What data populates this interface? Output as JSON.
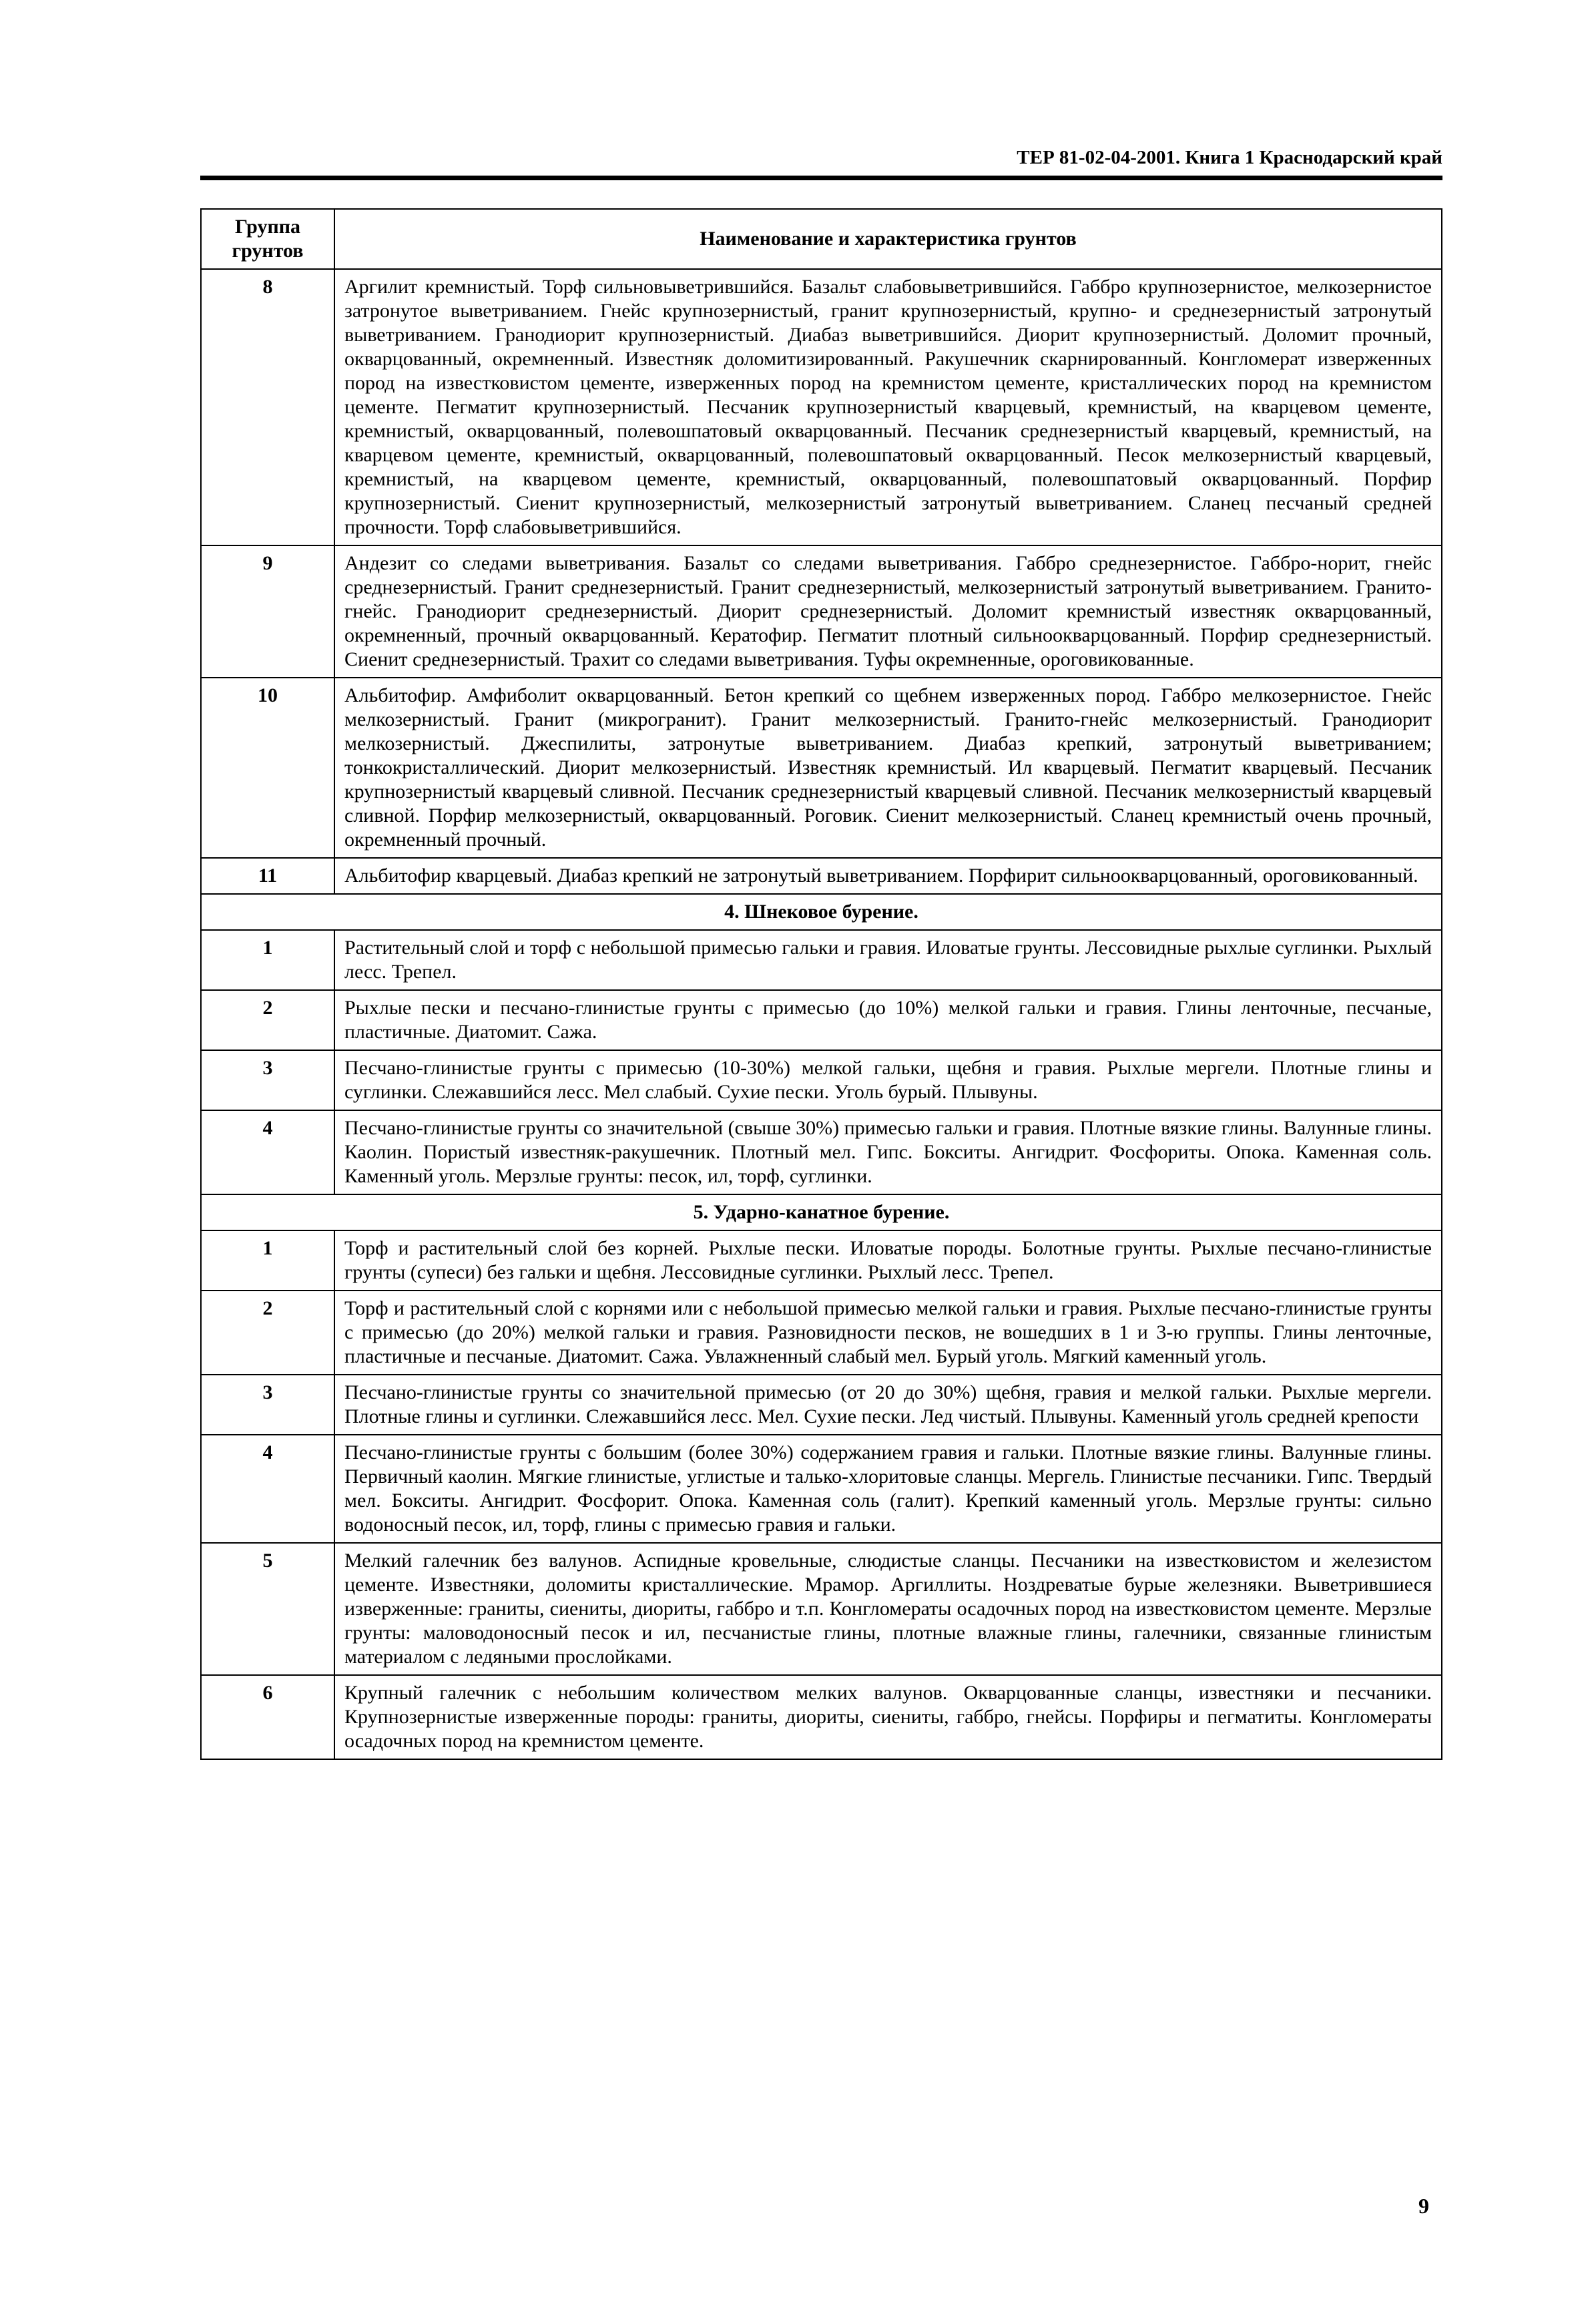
{
  "doc_header": "ТЕР 81-02-04-2001. Книга 1  Краснодарский край",
  "table": {
    "col1_header": "Группа грунтов",
    "col2_header": "Наименование и характеристика грунтов",
    "rows": [
      {
        "type": "data",
        "group": "8",
        "desc": "Аргилит кремнистый. Торф сильновыветрившийся. Базальт слабовыветрившийся. Габбро крупнозернистое, мелкозернистое затронутое выветриванием. Гнейс крупнозернистый, гранит крупнозернистый, крупно- и среднезернистый затронутый выветриванием. Гранодиорит крупнозернистый. Диабаз выветрившийся. Диорит крупнозернистый. Доломит прочный, окварцованный, окремненный. Известняк доломитизированный. Ракушечник скарнированный. Конгломерат изверженных пород на известковистом цементе, изверженных пород на кремнистом цементе, кристаллических пород на кремнистом цементе. Пегматит крупнозернистый. Песчаник крупнозернистый кварцевый, кремнистый, на кварцевом цементе, кремнистый, окварцованный, полевошпатовый окварцованный. Песчаник среднезернистый кварцевый, кремнистый, на кварцевом цементе, кремнистый, окварцованный, полевошпатовый окварцованный. Песок мелкозернистый кварцевый, кремнистый, на кварцевом цементе, кремнистый, окварцованный, полевошпатовый окварцованный. Порфир крупнозернистый. Сиенит крупнозернистый, мелкозернистый затронутый выветриванием. Сланец песчаный средней прочности. Торф слабовыветрившийся."
      },
      {
        "type": "data",
        "group": "9",
        "desc": "Андезит со следами выветривания. Базальт со следами выветривания. Габбро среднезернистое. Габбро-норит, гнейс среднезернистый. Гранит среднезернистый. Гранит среднезернистый, мелкозернистый затронутый выветриванием. Гранито-гнейс. Гранодиорит среднезернистый. Диорит среднезернистый. Доломит кремнистый известняк окварцованный, окремненный, прочный окварцованный. Кератофир. Пегматит плотный сильноокварцованный. Порфир среднезернистый. Сиенит среднезернистый. Трахит со следами выветривания. Туфы окремненные, ороговикованные."
      },
      {
        "type": "data",
        "group": "10",
        "desc": "Альбитофир. Амфиболит окварцованный. Бетон крепкий со щебнем изверженных пород. Габбро мелкозернистое. Гнейс мелкозернистый. Гранит (микрогранит). Гранит мелкозернистый. Гранито-гнейс мелкозернистый. Гранодиорит мелкозернистый. Джеспилиты, затронутые выветриванием. Диабаз крепкий, затронутый выветриванием; тонкокристаллический. Диорит мелкозернистый. Известняк кремнистый. Ил кварцевый. Пегматит кварцевый. Песчаник крупнозернистый кварцевый сливной. Песчаник среднезернистый кварцевый сливной. Песчаник мелкозернистый кварцевый сливной. Порфир мелкозернистый, окварцованный. Роговик. Сиенит мелкозернистый. Сланец кремнистый очень прочный, окремненный прочный."
      },
      {
        "type": "data",
        "group": "11",
        "desc": "Альбитофир кварцевый. Диабаз крепкий не затронутый выветриванием. Порфирит сильноокварцованный, ороговикованный."
      },
      {
        "type": "section",
        "title": "4. Шнековое бурение."
      },
      {
        "type": "data",
        "group": "1",
        "desc": "Растительный слой и торф с небольшой примесью гальки и гравия. Иловатые грунты. Лессовидные рыхлые суглинки. Рыхлый лесс. Трепел."
      },
      {
        "type": "data",
        "group": "2",
        "desc": "Рыхлые пески и песчано-глинистые грунты с примесью (до 10%) мелкой гальки и гравия. Глины ленточные, песчаные, пластичные. Диатомит. Сажа."
      },
      {
        "type": "data",
        "group": "3",
        "desc": "Песчано-глинистые грунты с примесью (10-30%) мелкой гальки, щебня и гравия. Рыхлые мергели. Плотные глины и суглинки. Слежавшийся лесс. Мел слабый. Сухие пески. Уголь бурый. Плывуны."
      },
      {
        "type": "data",
        "group": "4",
        "desc": "Песчано-глинистые грунты со значительной (свыше 30%) примесью гальки и гравия. Плотные вязкие глины. Валунные глины. Каолин. Пористый известняк-ракушечник. Плотный мел. Гипс. Бокситы. Ангидрит. Фосфориты. Опока. Каменная соль. Каменный уголь. Мерзлые грунты: песок, ил, торф, суглинки."
      },
      {
        "type": "section",
        "title": "5. Ударно-канатное бурение."
      },
      {
        "type": "data",
        "group": "1",
        "desc": "Торф и растительный слой без корней. Рыхлые пески. Иловатые породы. Болотные грунты. Рыхлые песчано-глинистые грунты (супеси) без гальки и щебня. Лессовидные суглинки. Рыхлый лесс. Трепел."
      },
      {
        "type": "data",
        "group": "2",
        "desc": "Торф и растительный слой с корнями или с небольшой примесью мелкой гальки и гравия. Рыхлые песчано-глинистые грунты с примесью (до 20%) мелкой гальки и гравия. Разновидности песков, не вошедших в 1 и 3-ю группы. Глины ленточные, пластичные и песчаные. Диатомит. Сажа. Увлажненный слабый мел. Бурый уголь. Мягкий каменный уголь."
      },
      {
        "type": "data",
        "group": "3",
        "desc": "Песчано-глинистые грунты со значительной примесью (от 20 до 30%) щебня, гравия и мелкой гальки. Рыхлые мергели. Плотные глины и суглинки. Слежавшийся лесс. Мел. Сухие пески. Лед чистый. Плывуны. Каменный уголь средней крепости"
      },
      {
        "type": "data",
        "group": "4",
        "desc": "Песчано-глинистые грунты с большим (более 30%) содержанием гравия и гальки. Плотные вязкие глины. Валунные глины. Первичный каолин. Мягкие глинистые, углистые и талько-хлоритовые сланцы. Мергель. Глинистые песчаники. Гипс. Твердый мел. Бокситы. Ангидрит. Фосфорит. Опока. Каменная соль (галит). Крепкий каменный уголь. Мерзлые грунты: сильно водоносный песок, ил, торф, глины с примесью гравия и гальки."
      },
      {
        "type": "data",
        "group": "5",
        "desc": "Мелкий галечник без валунов. Аспидные кровельные, слюдистые сланцы. Песчаники на известковистом и железистом цементе. Известняки, доломиты кристаллические. Мрамор. Аргиллиты. Ноздреватые бурые железняки. Выветрившиеся изверженные: граниты, сиениты, диориты, габбро и т.п. Конгломераты осадочных пород на известковистом цементе. Мерзлые грунты: маловодоносный песок и ил, песчанистые глины, плотные влажные глины, галечники, связанные глинистым материалом с ледяными прослойками."
      },
      {
        "type": "data",
        "group": "6",
        "desc": "Крупный галечник с небольшим количеством мелких валунов. Окварцованные сланцы, известняки и песчаники. Крупнозернистые изверженные породы: граниты, диориты, сиениты, габбро, гнейсы. Порфиры и пегматиты. Конгломераты осадочных пород на кремнистом цементе."
      }
    ]
  },
  "page_number": "9"
}
